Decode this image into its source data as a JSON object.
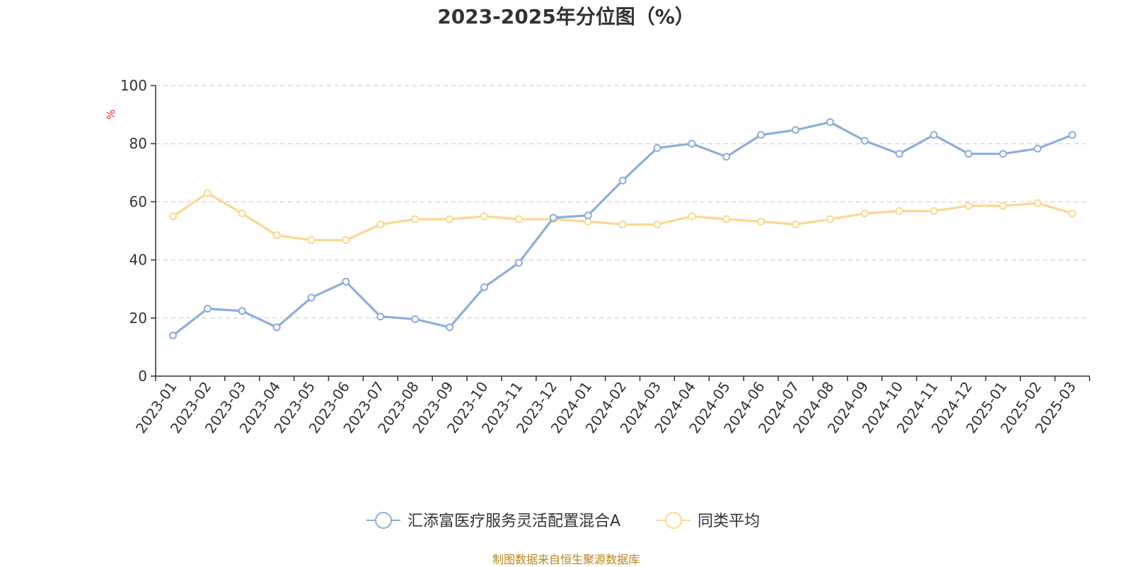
{
  "title": "2023-2025年分位图（%）",
  "source_note": "制图数据来自恒生聚源数据库",
  "chart_data": {
    "type": "line",
    "title": "2023-2025年分位图（%）",
    "ylabel": "%",
    "ylim": [
      0,
      100
    ],
    "yticks": [
      0,
      20,
      40,
      60,
      80,
      100
    ],
    "grid": true,
    "legend_position": "bottom-center",
    "categories": [
      "2023-01",
      "2023-02",
      "2023-03",
      "2023-04",
      "2023-05",
      "2023-06",
      "2023-07",
      "2023-08",
      "2023-09",
      "2023-10",
      "2023-11",
      "2023-12",
      "2024-01",
      "2024-02",
      "2024-03",
      "2024-04",
      "2024-05",
      "2024-06",
      "2024-07",
      "2024-08",
      "2024-09",
      "2024-10",
      "2024-11",
      "2024-12",
      "2025-01",
      "2025-02",
      "2025-03"
    ],
    "series": [
      {
        "name": "汇添富医疗服务灵活配置混合A",
        "color": "#8eaedb",
        "values": [
          14,
          23.2,
          22.4,
          16.8,
          27,
          32.5,
          20.5,
          19.6,
          16.8,
          30.6,
          39,
          54.5,
          55.3,
          67.3,
          78.5,
          80,
          75.5,
          83,
          84.7,
          87.4,
          81,
          76.5,
          83,
          76.5,
          76.5,
          78.3,
          83
        ]
      },
      {
        "name": "同类平均",
        "color": "#fbd88f",
        "values": [
          55,
          63,
          56,
          48.5,
          46.8,
          46.8,
          52.2,
          54,
          54,
          55,
          54,
          54,
          53.2,
          52.2,
          52.2,
          55,
          54,
          53.2,
          52.2,
          54,
          56,
          56.8,
          56.8,
          58.6,
          58.6,
          59.5,
          56
        ]
      }
    ]
  }
}
